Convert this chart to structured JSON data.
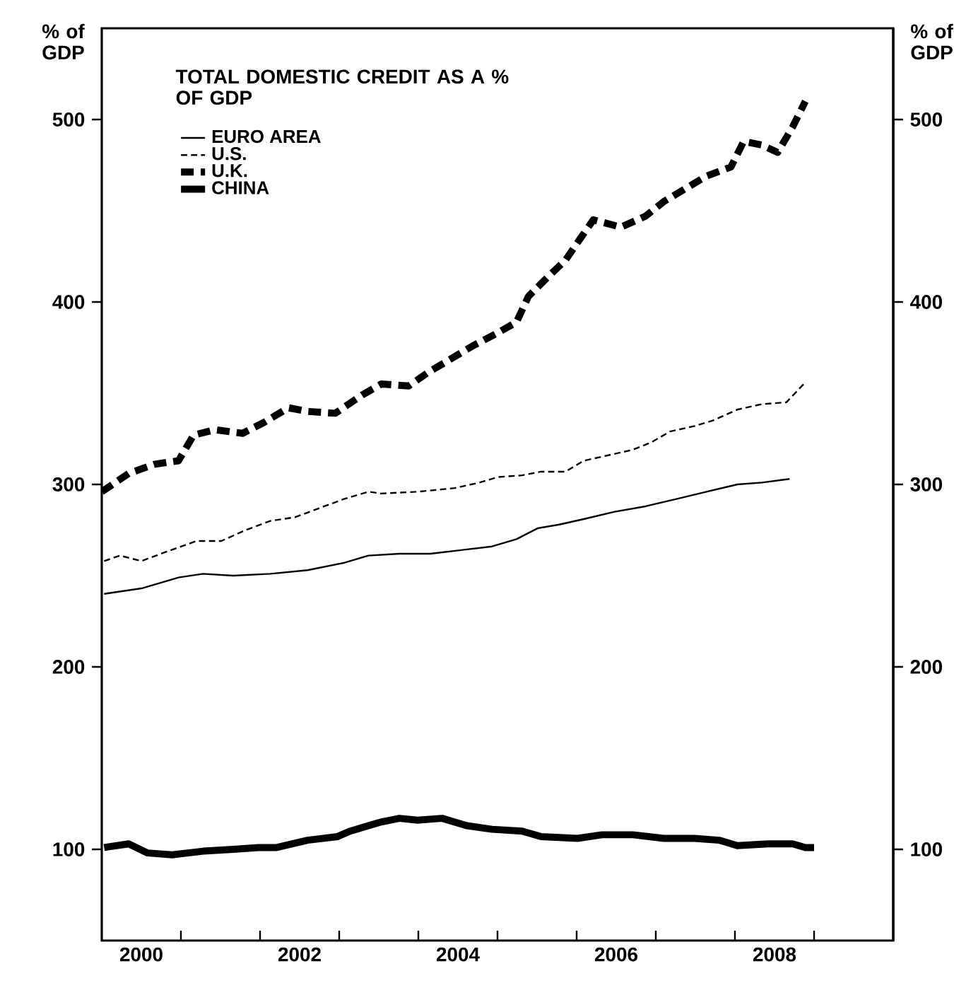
{
  "chart_data": {
    "type": "line",
    "title": "TOTAL DOMESTIC CREDIT AS A % OF GDP",
    "ylabel": "% of GDP",
    "y2label": "% of GDP",
    "xlim": [
      2000,
      2010
    ],
    "xticks": [
      {
        "value": 2000.5,
        "label": "2000"
      },
      {
        "value": 2002.5,
        "label": "2002"
      },
      {
        "value": 2004.5,
        "label": "2004"
      },
      {
        "value": 2006.5,
        "label": "2006"
      },
      {
        "value": 2008.5,
        "label": "2008"
      },
      {
        "value": 2001,
        "label": null
      },
      {
        "value": 2002,
        "label": null
      },
      {
        "value": 2003,
        "label": null
      },
      {
        "value": 2004,
        "label": null
      },
      {
        "value": 2005,
        "label": null
      },
      {
        "value": 2006,
        "label": null
      },
      {
        "value": 2007,
        "label": null
      },
      {
        "value": 2008,
        "label": null
      },
      {
        "value": 2009,
        "label": null
      }
    ],
    "ylim": [
      50,
      550
    ],
    "yticks": [
      100,
      200,
      300,
      400,
      500
    ],
    "y2lim": [
      50,
      550
    ],
    "y2ticks": [
      100,
      200,
      300,
      400,
      500
    ],
    "legend": "top left",
    "series": [
      {
        "name": "EURO AREA",
        "color": "#000000",
        "line_style": "solid",
        "x": [
          2000.03,
          2000.5,
          2000.97,
          2001.28,
          2001.66,
          2002.13,
          2002.6,
          2003.06,
          2003.37,
          2003.76,
          2004.15,
          2004.54,
          2004.93,
          2005.24,
          2005.51,
          2005.78,
          2006.09,
          2006.48,
          2006.87,
          2007.26,
          2007.64,
          2008.03,
          2008.34,
          2008.69
        ],
        "values": [
          240,
          243,
          249,
          251,
          250,
          251,
          253,
          257,
          261,
          262,
          262,
          264,
          266,
          270,
          276,
          278,
          281,
          285,
          288,
          292,
          296,
          300,
          301,
          303
        ]
      },
      {
        "name": "U.S.",
        "color": "#000000",
        "line_style": "dashed",
        "x": [
          2000.03,
          2000.23,
          2000.5,
          2000.81,
          2001.2,
          2001.51,
          2001.82,
          2002.13,
          2002.44,
          2002.75,
          2003.06,
          2003.37,
          2003.53,
          2003.99,
          2004.46,
          2004.77,
          2005.0,
          2005.31,
          2005.55,
          2005.86,
          2006.09,
          2006.4,
          2006.71,
          2006.94,
          2007.18,
          2007.49,
          2007.72,
          2008.03,
          2008.34,
          2008.65,
          2008.89
        ],
        "values": [
          258,
          261,
          258,
          263,
          269,
          269,
          275,
          280,
          282,
          287,
          292,
          296,
          295,
          296,
          298,
          301,
          304,
          305,
          307,
          307,
          313,
          316,
          319,
          323,
          329,
          332,
          335,
          341,
          344,
          345,
          356
        ]
      },
      {
        "name": "U.K.",
        "color": "#000000",
        "line_style": "dashed",
        "x": [
          2000.0,
          2000.34,
          2000.66,
          2000.97,
          2001.16,
          2001.43,
          2001.78,
          2002.05,
          2002.36,
          2002.6,
          2002.95,
          2003.29,
          2003.53,
          2003.88,
          2004.11,
          2004.38,
          2004.69,
          2005.0,
          2005.24,
          2005.39,
          2005.62,
          2005.86,
          2006.05,
          2006.21,
          2006.56,
          2006.87,
          2007.1,
          2007.37,
          2007.64,
          2007.95,
          2008.11,
          2008.34,
          2008.54,
          2008.73,
          2008.89
        ],
        "values": [
          296,
          306,
          311,
          313,
          327,
          330,
          328,
          334,
          342,
          340,
          339,
          349,
          355,
          354,
          361,
          368,
          376,
          383,
          389,
          403,
          413,
          423,
          435,
          445,
          441,
          447,
          455,
          462,
          469,
          474,
          488,
          486,
          482,
          496,
          510
        ]
      },
      {
        "name": "CHINA",
        "color": "#000000",
        "line_style": "solid",
        "x": [
          2000.03,
          2000.34,
          2000.58,
          2000.89,
          2001.28,
          2001.66,
          2001.98,
          2002.21,
          2002.6,
          2002.98,
          2003.14,
          2003.53,
          2003.76,
          2003.99,
          2004.3,
          2004.61,
          2004.93,
          2005.31,
          2005.55,
          2006.01,
          2006.32,
          2006.71,
          2007.1,
          2007.49,
          2007.8,
          2008.03,
          2008.42,
          2008.73,
          2008.89,
          2009.0
        ],
        "values": [
          101,
          103,
          98,
          97,
          99,
          100,
          101,
          101,
          105,
          107,
          110,
          115,
          117,
          116,
          117,
          113,
          111,
          110,
          107,
          106,
          108,
          108,
          106,
          106,
          105,
          102,
          103,
          103,
          101,
          101
        ]
      }
    ]
  }
}
